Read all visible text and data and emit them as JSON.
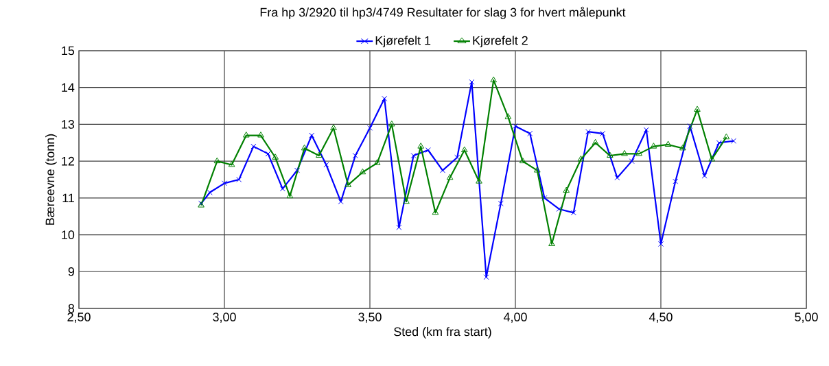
{
  "chart_data": {
    "type": "line",
    "title": "Fra hp 3/2920 til hp3/4749     Resultater for slag 3 for hvert målepunkt",
    "xlabel": "Sted (km fra start)",
    "ylabel": "Bæreevne (tonn)",
    "xlim": [
      2.5,
      5.0
    ],
    "xticks": [
      {
        "value": 2.5,
        "label": "2,50"
      },
      {
        "value": 3.0,
        "label": "3,00"
      },
      {
        "value": 3.5,
        "label": "3,50"
      },
      {
        "value": 4.0,
        "label": "4,00"
      },
      {
        "value": 4.5,
        "label": "4,50"
      },
      {
        "value": 5.0,
        "label": "5,00"
      }
    ],
    "ylim": [
      8,
      15
    ],
    "yticks": [
      8,
      9,
      10,
      11,
      12,
      13,
      14,
      15
    ],
    "grid": true,
    "legend": "top",
    "line_style": "solid",
    "series": [
      {
        "name": "Kjørefelt 1",
        "color": "#0000ff",
        "marker": "cross",
        "x": [
          2.92,
          2.95,
          3.0,
          3.05,
          3.1,
          3.15,
          3.2,
          3.25,
          3.3,
          3.35,
          3.4,
          3.45,
          3.5,
          3.55,
          3.6,
          3.65,
          3.7,
          3.75,
          3.8,
          3.85,
          3.9,
          3.95,
          4.0,
          4.05,
          4.1,
          4.15,
          4.2,
          4.25,
          4.3,
          4.35,
          4.4,
          4.45,
          4.5,
          4.55,
          4.6,
          4.65,
          4.7,
          4.75
        ],
        "values": [
          10.85,
          11.15,
          11.4,
          11.5,
          12.4,
          12.2,
          11.25,
          11.75,
          12.7,
          11.9,
          10.9,
          12.15,
          12.9,
          13.7,
          10.2,
          12.15,
          12.3,
          11.75,
          12.1,
          14.15,
          8.85,
          10.85,
          12.95,
          12.75,
          11.0,
          10.7,
          10.6,
          12.8,
          12.75,
          11.55,
          12.0,
          12.85,
          9.75,
          11.45,
          12.95,
          11.6,
          12.5,
          12.55
        ]
      },
      {
        "name": "Kjørefelt 2",
        "color": "#008000",
        "marker": "triangle",
        "x": [
          2.92,
          2.975,
          3.025,
          3.075,
          3.125,
          3.175,
          3.225,
          3.275,
          3.325,
          3.375,
          3.425,
          3.475,
          3.525,
          3.575,
          3.625,
          3.675,
          3.725,
          3.775,
          3.825,
          3.875,
          3.925,
          3.975,
          4.025,
          4.075,
          4.125,
          4.175,
          4.225,
          4.275,
          4.325,
          4.375,
          4.425,
          4.475,
          4.525,
          4.575,
          4.625,
          4.675,
          4.725
        ],
        "values": [
          10.8,
          12.0,
          11.9,
          12.7,
          12.7,
          12.1,
          11.05,
          12.35,
          12.15,
          12.9,
          11.35,
          11.7,
          11.95,
          13.0,
          10.9,
          12.4,
          10.6,
          11.55,
          12.3,
          11.45,
          14.2,
          13.2,
          12.0,
          11.75,
          9.75,
          11.2,
          12.05,
          12.5,
          12.15,
          12.2,
          12.2,
          12.4,
          12.45,
          12.35,
          13.4,
          12.05,
          12.65
        ]
      }
    ]
  }
}
